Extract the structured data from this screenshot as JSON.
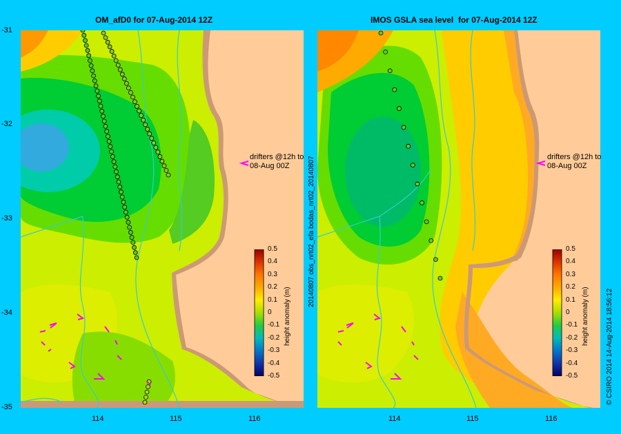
{
  "left_panel": {
    "title": "OM_afD0 for 07-Aug-2014 12Z",
    "y_ticks": [
      "-31",
      "-32",
      "-33",
      "-34",
      "-35"
    ],
    "x_ticks": [
      "114",
      "115",
      "116"
    ],
    "annotation": [
      "drifters @12h to",
      "08-Aug 00Z"
    ],
    "colorbar_label": "height anomaly (m)"
  },
  "right_panel": {
    "title": "IMOS GSLA sea level  for 07-Aug-2014 12Z",
    "side_label": "20140807 obs_nrt02_efa     bodas_nrt02_20140807",
    "x_ticks": [
      "114",
      "115",
      "116"
    ],
    "annotation": [
      "drifters @12h to",
      "08-Aug 00Z"
    ],
    "colorbar_label": "height anomaly (m)",
    "credit": "© CSIRO 2014   14-Aug-2014 18:56:12"
  },
  "colorbar_ticks": [
    "0.5",
    "0.4",
    "0.3",
    "0.2",
    "0.1",
    "0",
    "-0.1",
    "-0.2",
    "-0.3",
    "-0.4",
    "-0.5"
  ],
  "colors": {
    "land": "#ffcc99",
    "frame": "#00ccff",
    "arrow": "#ff00ff",
    "river": "#33cccc"
  }
}
